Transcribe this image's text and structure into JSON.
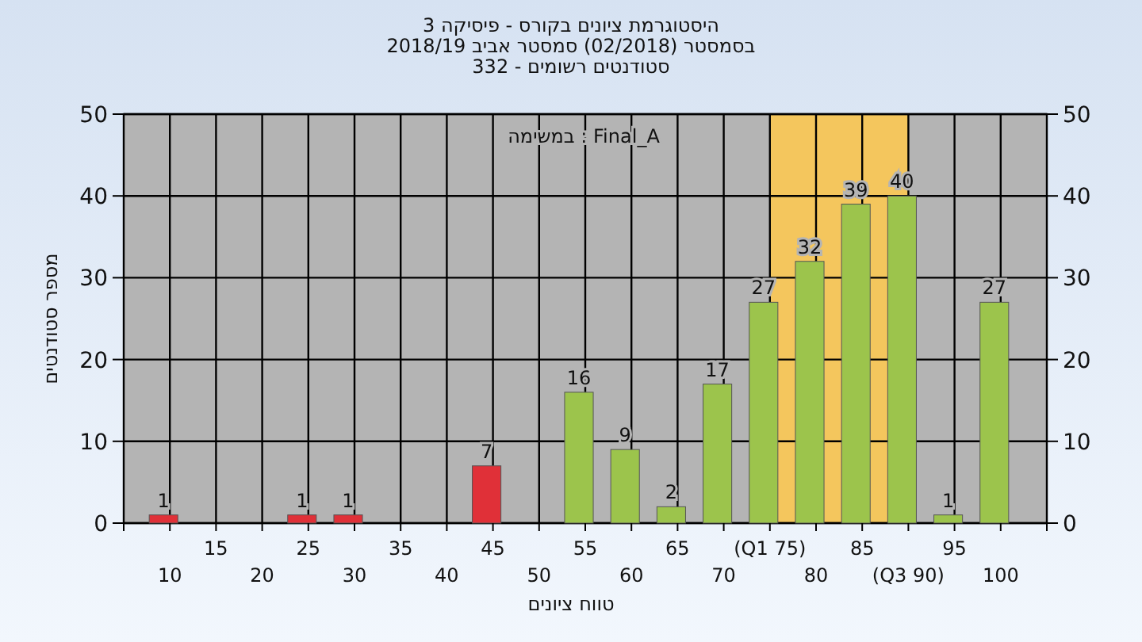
{
  "chart_data": {
    "type": "bar",
    "title": "היסטוגרמת ציונים בקורס - פיסיקה 3",
    "subtitle": "בסמסטר  (02/2018)  סמסטר אביב 2018/19\nסטודנטים רשומים - 332",
    "xlabel": "טווח ציונים",
    "ylabel": "מספר סטודנטים",
    "annotations": [
      "במשימה : Final_A"
    ],
    "categories": [
      "10",
      "15",
      "20",
      "25",
      "30",
      "35",
      "40",
      "45",
      "50",
      "55",
      "60",
      "65",
      "70",
      "(Q1 75)",
      "80",
      "85",
      "(Q3 90)",
      "95",
      "100"
    ],
    "values": [
      1,
      0,
      0,
      1,
      1,
      0,
      0,
      7,
      0,
      16,
      9,
      2,
      17,
      27,
      32,
      39,
      40,
      1,
      27
    ],
    "value_labels": [
      "1",
      null,
      null,
      "1",
      "1",
      null,
      null,
      "7",
      null,
      "16",
      "9",
      "2",
      "17",
      "27",
      "32",
      "39",
      "40",
      "1",
      "27"
    ],
    "colors": [
      "#e03038",
      "#e03038",
      "#e03038",
      "#e03038",
      "#e03038",
      "#e03038",
      "#e03038",
      "#e03038",
      "#e03038",
      "#9cc44c",
      "#9cc44c",
      "#9cc44c",
      "#9cc44c",
      "#9cc44c",
      "#9cc44c",
      "#9cc44c",
      "#9cc44c",
      "#9cc44c",
      "#9cc44c"
    ],
    "ylim": [
      0,
      50
    ],
    "yticks": [
      0,
      10,
      20,
      30,
      40,
      50
    ],
    "y2lim": [
      0,
      50
    ],
    "y2ticks": [
      0,
      10,
      20,
      30,
      40,
      50
    ],
    "grid": true,
    "bands": [
      {
        "axis": "x",
        "from": "(Q1 75)",
        "to": "(Q3 90)",
        "color": "#ffc94d"
      }
    ]
  }
}
